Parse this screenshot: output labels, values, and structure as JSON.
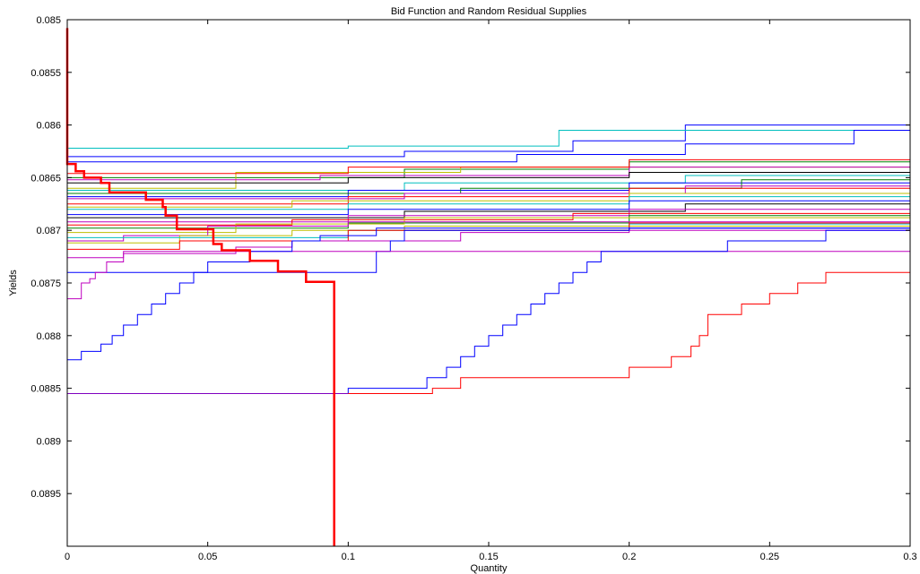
{
  "chart_data": {
    "type": "line",
    "title": "Bid Function and Random Residual Supplies",
    "xlabel": "Quantity",
    "ylabel": "Yields",
    "xlim": [
      0,
      0.3
    ],
    "ylim": [
      0.085,
      0.09
    ],
    "y_reversed": true,
    "grid": false,
    "legend": "none",
    "x_ticks": [
      0,
      0.05,
      0.1,
      0.15,
      0.2,
      0.25,
      0.3
    ],
    "x_tick_labels": [
      "0",
      "0.05",
      "0.1",
      "0.15",
      "0.2",
      "0.25",
      "0.3"
    ],
    "y_ticks": [
      0.085,
      0.0855,
      0.086,
      0.0865,
      0.087,
      0.0875,
      0.088,
      0.0885,
      0.089,
      0.0895
    ],
    "y_tick_labels": [
      "0.085",
      "0.0855",
      "0.086",
      "0.0865",
      "0.087",
      "0.0875",
      "0.088",
      "0.0885",
      "0.089",
      "0.0895"
    ],
    "bid_function": {
      "color": "#ff0000",
      "points": [
        [
          0,
          0.08508
        ],
        [
          0,
          0.08637
        ],
        [
          0.003,
          0.08637
        ],
        [
          0.003,
          0.08644
        ],
        [
          0.006,
          0.08644
        ],
        [
          0.006,
          0.0865
        ],
        [
          0.012,
          0.0865
        ],
        [
          0.012,
          0.08655
        ],
        [
          0.015,
          0.08655
        ],
        [
          0.015,
          0.08664
        ],
        [
          0.028,
          0.08664
        ],
        [
          0.028,
          0.08671
        ],
        [
          0.034,
          0.08671
        ],
        [
          0.034,
          0.08678
        ],
        [
          0.035,
          0.08678
        ],
        [
          0.035,
          0.08686
        ],
        [
          0.039,
          0.08686
        ],
        [
          0.039,
          0.08699
        ],
        [
          0.052,
          0.08699
        ],
        [
          0.052,
          0.08713
        ],
        [
          0.055,
          0.08713
        ],
        [
          0.055,
          0.08719
        ],
        [
          0.065,
          0.08719
        ],
        [
          0.065,
          0.08729
        ],
        [
          0.075,
          0.08729
        ],
        [
          0.075,
          0.08739
        ],
        [
          0.085,
          0.08739
        ],
        [
          0.085,
          0.08749
        ],
        [
          0.095,
          0.08749
        ],
        [
          0.095,
          0.09
        ]
      ]
    },
    "residual_supplies": [
      {
        "color": "#0000ff",
        "points": [
          [
            0,
            0.0863
          ],
          [
            0.06,
            0.0863
          ],
          [
            0.12,
            0.08625
          ],
          [
            0.18,
            0.08615
          ],
          [
            0.22,
            0.086
          ],
          [
            0.3,
            0.0859
          ]
        ]
      },
      {
        "color": "#00bfbf",
        "points": [
          [
            0,
            0.08622
          ],
          [
            0.1,
            0.0862
          ],
          [
            0.175,
            0.08605
          ],
          [
            0.26,
            0.08605
          ],
          [
            0.3,
            0.086
          ]
        ]
      },
      {
        "color": "#0000ff",
        "points": [
          [
            0,
            0.08635
          ],
          [
            0.08,
            0.08635
          ],
          [
            0.16,
            0.08628
          ],
          [
            0.22,
            0.08618
          ],
          [
            0.28,
            0.08605
          ],
          [
            0.3,
            0.08605
          ]
        ]
      },
      {
        "color": "#008000",
        "points": [
          [
            0,
            0.0865
          ],
          [
            0.12,
            0.08642
          ],
          [
            0.2,
            0.08635
          ],
          [
            0.3,
            0.08625
          ]
        ]
      },
      {
        "color": "#bfbf00",
        "points": [
          [
            0,
            0.0866
          ],
          [
            0.06,
            0.08645
          ],
          [
            0.14,
            0.0864
          ],
          [
            0.3,
            0.08638
          ]
        ]
      },
      {
        "color": "#bf00bf",
        "points": [
          [
            0,
            0.08652
          ],
          [
            0.09,
            0.08648
          ],
          [
            0.2,
            0.0864
          ],
          [
            0.3,
            0.0863
          ]
        ]
      },
      {
        "color": "#ff0000",
        "points": [
          [
            0,
            0.08646
          ],
          [
            0.1,
            0.0864
          ],
          [
            0.2,
            0.08633
          ],
          [
            0.3,
            0.08625
          ]
        ]
      },
      {
        "color": "#00bfbf",
        "points": [
          [
            0,
            0.08662
          ],
          [
            0.12,
            0.08655
          ],
          [
            0.22,
            0.08648
          ],
          [
            0.3,
            0.0864
          ]
        ]
      },
      {
        "color": "#000000",
        "points": [
          [
            0,
            0.08655
          ],
          [
            0.1,
            0.0865
          ],
          [
            0.2,
            0.08645
          ],
          [
            0.3,
            0.0864
          ]
        ]
      },
      {
        "color": "#0000ff",
        "points": [
          [
            0,
            0.08668
          ],
          [
            0.1,
            0.08662
          ],
          [
            0.2,
            0.08655
          ],
          [
            0.3,
            0.08648
          ]
        ]
      },
      {
        "color": "#008000",
        "points": [
          [
            0,
            0.08665
          ],
          [
            0.14,
            0.0866
          ],
          [
            0.24,
            0.08652
          ],
          [
            0.3,
            0.0865
          ]
        ]
      },
      {
        "color": "#ff0000",
        "points": [
          [
            0,
            0.08675
          ],
          [
            0.1,
            0.08668
          ],
          [
            0.2,
            0.0866
          ],
          [
            0.3,
            0.08655
          ]
        ]
      },
      {
        "color": "#bf00bf",
        "points": [
          [
            0,
            0.0867
          ],
          [
            0.12,
            0.08665
          ],
          [
            0.22,
            0.08658
          ],
          [
            0.3,
            0.08652
          ]
        ]
      },
      {
        "color": "#bfbf00",
        "points": [
          [
            0,
            0.08678
          ],
          [
            0.08,
            0.08672
          ],
          [
            0.2,
            0.08665
          ],
          [
            0.3,
            0.08658
          ]
        ]
      },
      {
        "color": "#00bfbf",
        "points": [
          [
            0,
            0.0868
          ],
          [
            0.1,
            0.08675
          ],
          [
            0.2,
            0.08668
          ],
          [
            0.3,
            0.0866
          ]
        ]
      },
      {
        "color": "#0000ff",
        "points": [
          [
            0,
            0.08685
          ],
          [
            0.1,
            0.0868
          ],
          [
            0.2,
            0.08672
          ],
          [
            0.3,
            0.08665
          ]
        ]
      },
      {
        "color": "#000000",
        "points": [
          [
            0,
            0.08688
          ],
          [
            0.12,
            0.08682
          ],
          [
            0.22,
            0.08675
          ],
          [
            0.3,
            0.08668
          ]
        ]
      },
      {
        "color": "#bf00bf",
        "points": [
          [
            0,
            0.08692
          ],
          [
            0.1,
            0.08686
          ],
          [
            0.2,
            0.0868
          ],
          [
            0.3,
            0.08672
          ]
        ]
      },
      {
        "color": "#ff0000",
        "points": [
          [
            0,
            0.08695
          ],
          [
            0.08,
            0.0869
          ],
          [
            0.18,
            0.08684
          ],
          [
            0.3,
            0.08676
          ]
        ]
      },
      {
        "color": "#008000",
        "points": [
          [
            0,
            0.08698
          ],
          [
            0.1,
            0.08693
          ],
          [
            0.2,
            0.08686
          ],
          [
            0.3,
            0.0868
          ]
        ]
      },
      {
        "color": "#bfbf00",
        "points": [
          [
            0,
            0.08702
          ],
          [
            0.06,
            0.08694
          ],
          [
            0.12,
            0.08688
          ],
          [
            0.3,
            0.08685
          ]
        ]
      },
      {
        "color": "#bf00bf",
        "points": [
          [
            0,
            0.0871
          ],
          [
            0.02,
            0.08705
          ],
          [
            0.05,
            0.08696
          ],
          [
            0.1,
            0.08692
          ],
          [
            0.3,
            0.0869
          ]
        ]
      },
      {
        "color": "#bfbf00",
        "points": [
          [
            0,
            0.08712
          ],
          [
            0.04,
            0.08705
          ],
          [
            0.08,
            0.087
          ],
          [
            0.12,
            0.08696
          ],
          [
            0.3,
            0.08694
          ]
        ]
      },
      {
        "color": "#00bfbf",
        "points": [
          [
            0,
            0.08707
          ],
          [
            0.1,
            0.087
          ],
          [
            0.2,
            0.08694
          ],
          [
            0.3,
            0.08688
          ]
        ]
      },
      {
        "color": "#ff0000",
        "points": [
          [
            0,
            0.08718
          ],
          [
            0.04,
            0.0871
          ],
          [
            0.1,
            0.087
          ],
          [
            0.2,
            0.08693
          ],
          [
            0.3,
            0.08688
          ]
        ]
      },
      {
        "color": "#bf00bf",
        "points": [
          [
            0,
            0.08726
          ],
          [
            0.02,
            0.08722
          ],
          [
            0.06,
            0.08716
          ],
          [
            0.08,
            0.0871
          ],
          [
            0.14,
            0.08702
          ],
          [
            0.2,
            0.087
          ],
          [
            0.3,
            0.08698
          ]
        ]
      },
      {
        "color": "#0000ff",
        "points": [
          [
            0,
            0.0874
          ],
          [
            0.1,
            0.0874
          ],
          [
            0.11,
            0.0872
          ],
          [
            0.115,
            0.0871
          ],
          [
            0.12,
            0.087
          ],
          [
            0.2,
            0.08698
          ],
          [
            0.3,
            0.08695
          ]
        ]
      },
      {
        "color": "#bf00bf",
        "points": [
          [
            0,
            0.08765
          ],
          [
            0.005,
            0.0875
          ],
          [
            0.008,
            0.08746
          ],
          [
            0.01,
            0.0874
          ],
          [
            0.014,
            0.0873
          ],
          [
            0.02,
            0.0872
          ],
          [
            0.3,
            0.08718
          ]
        ]
      },
      {
        "color": "#0000ff",
        "points": [
          [
            0,
            0.08823
          ],
          [
            0.005,
            0.08823
          ],
          [
            0.005,
            0.08815
          ],
          [
            0.012,
            0.08815
          ],
          [
            0.012,
            0.08808
          ],
          [
            0.016,
            0.08808
          ],
          [
            0.016,
            0.088
          ],
          [
            0.02,
            0.088
          ],
          [
            0.02,
            0.0879
          ],
          [
            0.025,
            0.0879
          ],
          [
            0.025,
            0.0878
          ],
          [
            0.03,
            0.0878
          ],
          [
            0.03,
            0.0877
          ],
          [
            0.035,
            0.0877
          ],
          [
            0.035,
            0.0876
          ],
          [
            0.04,
            0.0876
          ],
          [
            0.04,
            0.0875
          ],
          [
            0.045,
            0.0875
          ],
          [
            0.045,
            0.0874
          ],
          [
            0.05,
            0.0874
          ],
          [
            0.05,
            0.0873
          ],
          [
            0.065,
            0.0873
          ],
          [
            0.065,
            0.0872
          ],
          [
            0.08,
            0.0872
          ],
          [
            0.08,
            0.0871
          ],
          [
            0.09,
            0.0871
          ],
          [
            0.09,
            0.08705
          ],
          [
            0.11,
            0.08705
          ],
          [
            0.11,
            0.08698
          ],
          [
            0.3,
            0.08695
          ]
        ]
      },
      {
        "color": "#0000ff",
        "points": [
          [
            0,
            0.08855
          ],
          [
            0.1,
            0.08855
          ],
          [
            0.1,
            0.0885
          ],
          [
            0.128,
            0.0885
          ],
          [
            0.128,
            0.0884
          ],
          [
            0.135,
            0.0884
          ],
          [
            0.135,
            0.0883
          ],
          [
            0.14,
            0.0883
          ],
          [
            0.14,
            0.0882
          ],
          [
            0.145,
            0.0882
          ],
          [
            0.145,
            0.0881
          ],
          [
            0.15,
            0.0881
          ],
          [
            0.15,
            0.088
          ],
          [
            0.155,
            0.088
          ],
          [
            0.155,
            0.0879
          ],
          [
            0.16,
            0.0879
          ],
          [
            0.16,
            0.0878
          ],
          [
            0.165,
            0.0878
          ],
          [
            0.165,
            0.0877
          ],
          [
            0.17,
            0.0877
          ],
          [
            0.17,
            0.0876
          ],
          [
            0.175,
            0.0876
          ],
          [
            0.175,
            0.0875
          ],
          [
            0.18,
            0.0875
          ],
          [
            0.18,
            0.0874
          ],
          [
            0.185,
            0.0874
          ],
          [
            0.185,
            0.0873
          ],
          [
            0.19,
            0.0873
          ],
          [
            0.19,
            0.0872
          ],
          [
            0.235,
            0.0872
          ],
          [
            0.235,
            0.0871
          ],
          [
            0.27,
            0.0871
          ],
          [
            0.27,
            0.087
          ],
          [
            0.3,
            0.087
          ]
        ]
      },
      {
        "color": "#ff0000",
        "points": [
          [
            0.095,
            0.08855
          ],
          [
            0.13,
            0.08855
          ],
          [
            0.13,
            0.0885
          ],
          [
            0.14,
            0.0885
          ],
          [
            0.14,
            0.0884
          ],
          [
            0.2,
            0.0884
          ],
          [
            0.2,
            0.0883
          ],
          [
            0.215,
            0.0883
          ],
          [
            0.215,
            0.0882
          ],
          [
            0.222,
            0.0882
          ],
          [
            0.222,
            0.0881
          ],
          [
            0.225,
            0.0881
          ],
          [
            0.225,
            0.088
          ],
          [
            0.228,
            0.088
          ],
          [
            0.228,
            0.0878
          ],
          [
            0.24,
            0.0878
          ],
          [
            0.24,
            0.0877
          ],
          [
            0.25,
            0.0877
          ],
          [
            0.25,
            0.0876
          ],
          [
            0.26,
            0.0876
          ],
          [
            0.26,
            0.0875
          ],
          [
            0.27,
            0.0875
          ],
          [
            0.27,
            0.0874
          ],
          [
            0.3,
            0.0874
          ]
        ]
      },
      {
        "color": "#7f00bf",
        "points": [
          [
            0,
            0.08855
          ],
          [
            0.1,
            0.08855
          ]
        ]
      },
      {
        "color": "#008000",
        "points": [
          [
            0,
            0.0877
          ],
          [
            0,
            0.09
          ]
        ]
      }
    ]
  }
}
